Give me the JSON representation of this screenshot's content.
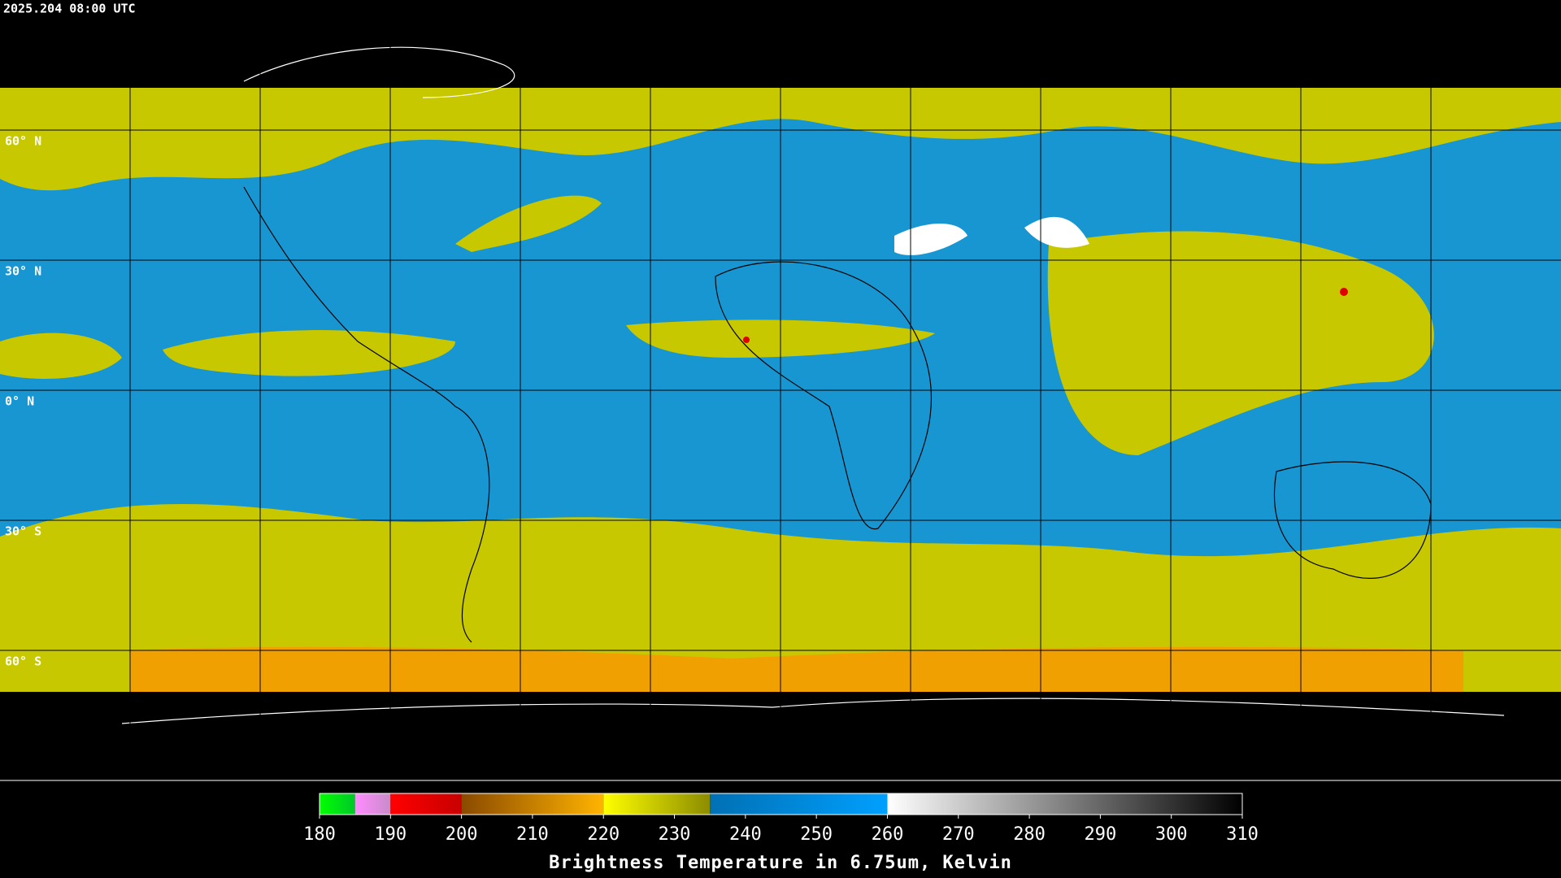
{
  "header": {
    "timestamp": "2025.204 08:00 UTC"
  },
  "map": {
    "lat_labels": [
      "60° N",
      "30° N",
      "0° N",
      "30° S",
      "60° S"
    ]
  },
  "colorbar": {
    "title": "Brightness Temperature in 6.75um, Kelvin",
    "range": [
      180,
      310
    ],
    "ticks": [
      180,
      190,
      200,
      210,
      220,
      230,
      240,
      250,
      260,
      270,
      280,
      290,
      300,
      310
    ],
    "segments": [
      {
        "from": 180,
        "to": 185,
        "colors": [
          "#00ff00",
          "#00c828"
        ]
      },
      {
        "from": 185,
        "to": 190,
        "colors": [
          "#ff8cff",
          "#c88cc8"
        ]
      },
      {
        "from": 190,
        "to": 200,
        "colors": [
          "#ff0000",
          "#c80000"
        ]
      },
      {
        "from": 200,
        "to": 220,
        "colors": [
          "#8a4a00",
          "#ffb400"
        ]
      },
      {
        "from": 220,
        "to": 235,
        "colors": [
          "#ffff00",
          "#8c8c00"
        ]
      },
      {
        "from": 235,
        "to": 260,
        "colors": [
          "#0070b4",
          "#00a0ff"
        ]
      },
      {
        "from": 260,
        "to": 310,
        "colors": [
          "#ffffff",
          "#000000"
        ]
      }
    ]
  }
}
